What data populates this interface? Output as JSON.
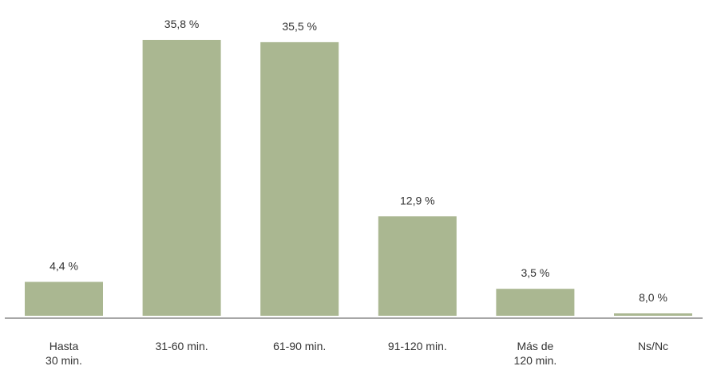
{
  "chart_data": {
    "type": "bar",
    "categories": [
      [
        "Hasta",
        "30 min."
      ],
      [
        "31-60 min."
      ],
      [
        "61-90 min."
      ],
      [
        "91-120 min."
      ],
      [
        "Más de",
        "120 min."
      ],
      [
        "Ns/Nc"
      ]
    ],
    "values": [
      4.4,
      35.8,
      35.5,
      12.9,
      3.5,
      8.0
    ],
    "value_labels": [
      "4,4 %",
      "35,8 %",
      "35,5 %",
      "12,9 %",
      "3,5 %",
      "8,0 %"
    ],
    "bar_heights_note": null,
    "title": "",
    "xlabel": "",
    "ylabel": "",
    "grid": false,
    "legend": "none",
    "colors": {
      "bar": "#aab791",
      "axis": "#8a8a8a",
      "text": "#333333"
    }
  }
}
